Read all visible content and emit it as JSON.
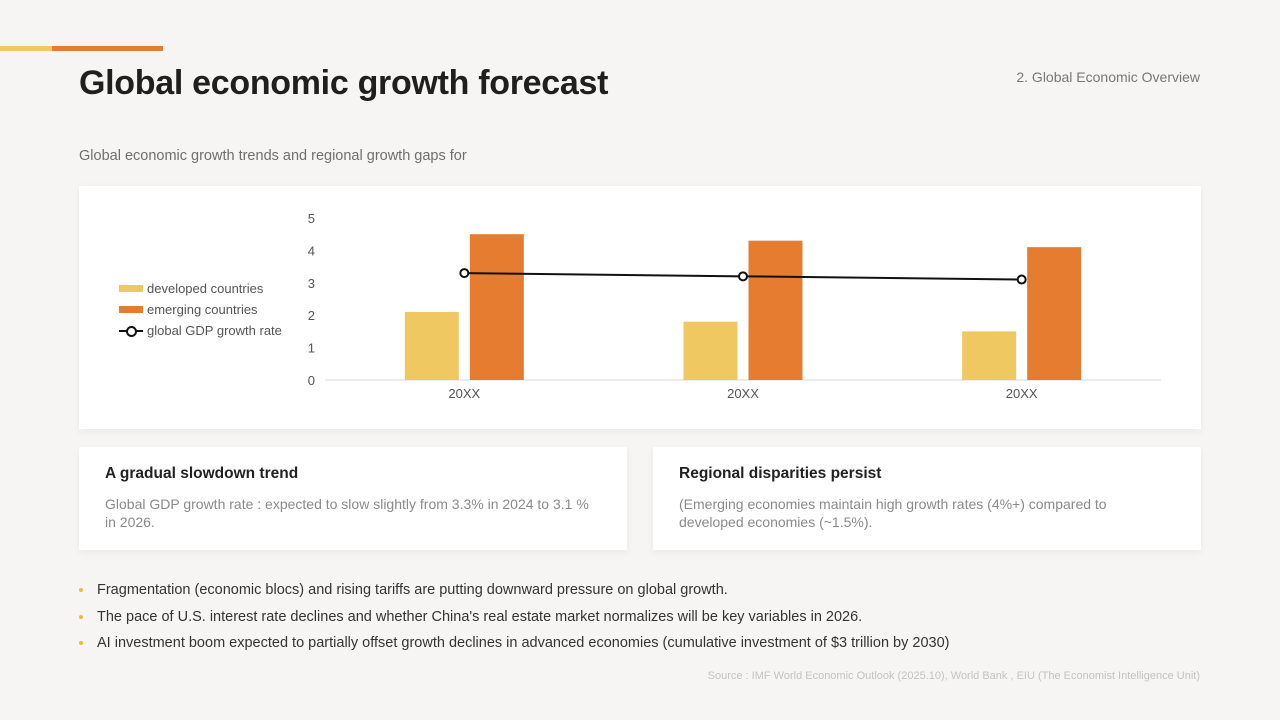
{
  "header": {
    "title": "Global economic growth forecast",
    "section": "2. Global Economic Overview",
    "subtitle": "Global economic growth trends and regional growth gaps for"
  },
  "colors": {
    "accent_light": "#f1c95e",
    "accent_dark": "#e57c30",
    "line": "#111111",
    "bullet": "#f0b93a"
  },
  "chart_data": {
    "type": "bar",
    "categories": [
      "20XX",
      "20XX",
      "20XX"
    ],
    "series": [
      {
        "name": "developed countries",
        "type": "bar",
        "color": "#f0c862",
        "values": [
          2.1,
          1.8,
          1.5
        ]
      },
      {
        "name": "emerging countries",
        "type": "bar",
        "color": "#e57c30",
        "values": [
          4.5,
          4.3,
          4.1
        ]
      },
      {
        "name": "global GDP growth rate",
        "type": "line",
        "color": "#111111",
        "values": [
          3.3,
          3.2,
          3.1
        ]
      }
    ],
    "y_ticks": [
      0,
      1,
      2,
      3,
      4,
      5
    ],
    "ylim": [
      0,
      5
    ],
    "legend_position": "left",
    "grid": false
  },
  "cards": [
    {
      "title": "A gradual slowdown trend",
      "body": "Global GDP growth rate : expected to slow slightly from 3.3% in 2024 to 3.1 % in 2026."
    },
    {
      "title": "Regional disparities persist",
      "body": "(Emerging economies maintain high growth rates (4%+) compared to developed economies (~1.5%)."
    }
  ],
  "bullets": [
    "Fragmentation (economic blocs) and rising tariffs are putting downward pressure on global growth.",
    "The pace of U.S. interest rate declines and whether China's real estate market normalizes will be key variables in 2026.",
    "AI investment boom expected to partially offset growth declines in advanced economies (cumulative investment of $3 trillion by 2030)"
  ],
  "source": "Source : IMF World Economic Outlook (2025.10), World Bank , EIU (The Economist Intelligence Unit)"
}
